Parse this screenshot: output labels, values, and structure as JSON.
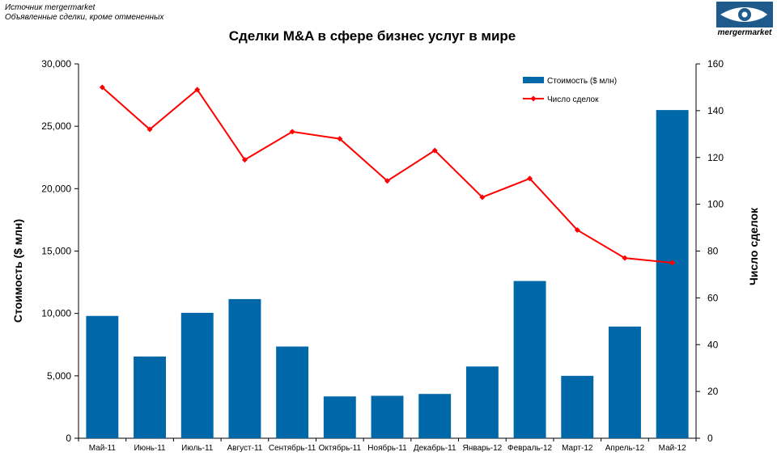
{
  "source": {
    "line1": "Источник mergermarket",
    "line2": "Объявленные сделки, кроме отмененных"
  },
  "logo": {
    "text": "mergermarket",
    "icon": "eye-fish-logo-icon"
  },
  "colors": {
    "bars": "#0068A8",
    "line": "#FF0000"
  },
  "chart_data": {
    "type": "bar",
    "title": "Сделки M&A в сфере бизнес услуг в мире",
    "categories": [
      "Май-11",
      "Июнь-11",
      "Июль-11",
      "Август-11",
      "Сентябрь-11",
      "Октябрь-11",
      "Ноябрь-11",
      "Декабрь-11",
      "Январь-12",
      "Февраль-12",
      "Март-12",
      "Апрель-12",
      "Май-12"
    ],
    "series": [
      {
        "name": "Стоимость ($ млн)",
        "type": "bar",
        "axis": "left",
        "values": [
          9800,
          6550,
          10050,
          11150,
          7350,
          3350,
          3400,
          3550,
          5750,
          12600,
          5000,
          8950,
          26300
        ]
      },
      {
        "name": "Число сделок",
        "type": "line",
        "axis": "right",
        "values": [
          150,
          132,
          149,
          119,
          131,
          128,
          110,
          123,
          103,
          111,
          89,
          77,
          75
        ]
      }
    ],
    "ylabel": "Стоимость  ($ млн)",
    "ylabel_right": "Число сделок",
    "ylim": [
      0,
      30000
    ],
    "ylim_right": [
      0,
      160
    ],
    "yticks": [
      "0",
      "5,000",
      "10,000",
      "15,000",
      "20,000",
      "25,000",
      "30,000"
    ],
    "yticks_right": [
      "0",
      "20",
      "40",
      "60",
      "80",
      "100",
      "120",
      "140",
      "160"
    ],
    "legend": "top-right",
    "grid": false
  }
}
